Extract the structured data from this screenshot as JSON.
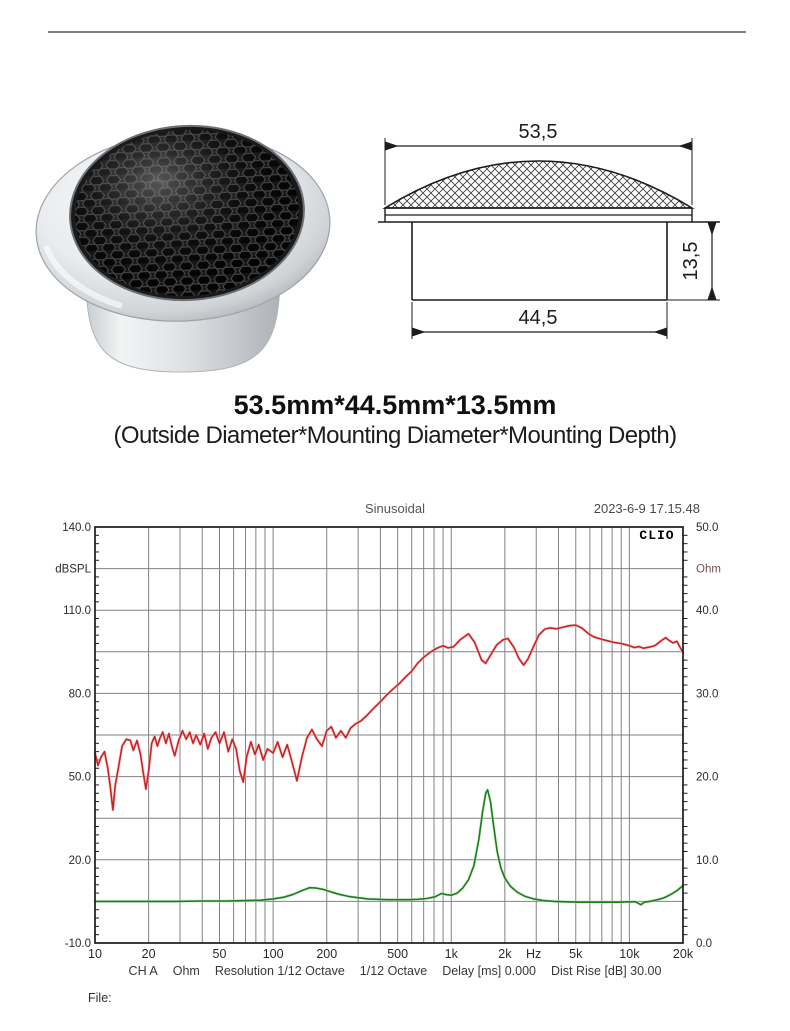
{
  "headline": {
    "size": "53.5mm*44.5mm*13.5mm",
    "note": "(Outside Diameter*Mounting Diameter*Mounting Depth)"
  },
  "dimension_drawing": {
    "outer_diameter": "53,5",
    "mounting_diameter": "44,5",
    "mounting_depth": "13,5"
  },
  "chart_data": {
    "type": "line",
    "title": "Sinusoidal",
    "timestamp": "2023-6-9 17.15.48",
    "brand": "CLIO",
    "file_label": "File:",
    "footer": [
      "CH A",
      "Ohm",
      "Resolution 1/12 Octave",
      "1/12 Octave",
      "Delay [ms] 0.000",
      "Dist Rise [dB] 30.00"
    ],
    "grid": {
      "h_step_db": 15,
      "x_decade_lines": [
        2,
        3,
        4,
        5,
        6,
        7,
        8,
        9,
        10
      ]
    },
    "x_axis": {
      "scale": "log",
      "min_hz": 10,
      "max_hz": 20000,
      "unit": "Hz",
      "ticks": [
        {
          "f": 10,
          "t": "10"
        },
        {
          "f": 20,
          "t": "20"
        },
        {
          "f": 50,
          "t": "50"
        },
        {
          "f": 100,
          "t": "100"
        },
        {
          "f": 200,
          "t": "200"
        },
        {
          "f": 500,
          "t": "500"
        },
        {
          "f": 1000,
          "t": "1k"
        },
        {
          "f": 2000,
          "t": "2k"
        },
        {
          "f": 2900,
          "t": "Hz"
        },
        {
          "f": 5000,
          "t": "5k"
        },
        {
          "f": 10000,
          "t": "10k"
        },
        {
          "f": 20000,
          "t": "20k"
        }
      ]
    },
    "left_axis": {
      "unit": "dBSPL",
      "min": -10,
      "max": 140,
      "labels": [
        {
          "v": 140,
          "t": "140.0"
        },
        {
          "v": 125,
          "t": "dBSPL"
        },
        {
          "v": 110,
          "t": "110.0"
        },
        {
          "v": 80,
          "t": "80.0"
        },
        {
          "v": 50,
          "t": "50.0"
        },
        {
          "v": 20,
          "t": "20.0"
        },
        {
          "v": -10,
          "t": "-10.0"
        }
      ]
    },
    "right_axis": {
      "unit": "Ohm",
      "min": 0,
      "max": 50,
      "labels": [
        {
          "v": 50,
          "t": "50.0"
        },
        {
          "v": 45,
          "t": "Ohm"
        },
        {
          "v": 40,
          "t": "40.0"
        },
        {
          "v": 30,
          "t": "30.0"
        },
        {
          "v": 20,
          "t": "20.0"
        },
        {
          "v": 10,
          "t": "10.0"
        },
        {
          "v": 0,
          "t": "0.0"
        }
      ]
    },
    "series": [
      {
        "name": "SPL",
        "axis": "left",
        "color": "#c82323",
        "halo": "#f2bcbc",
        "points": [
          [
            10,
            58.5
          ],
          [
            10.4,
            54
          ],
          [
            10.8,
            57
          ],
          [
            11.3,
            59
          ],
          [
            11.8,
            53
          ],
          [
            12.2,
            46
          ],
          [
            12.6,
            38
          ],
          [
            13,
            47
          ],
          [
            13.6,
            54
          ],
          [
            14.2,
            61
          ],
          [
            15,
            63.5
          ],
          [
            15.8,
            63
          ],
          [
            16.4,
            59.5
          ],
          [
            17.2,
            63
          ],
          [
            18,
            58
          ],
          [
            18.6,
            52
          ],
          [
            19.3,
            45.5
          ],
          [
            20,
            52
          ],
          [
            20.8,
            62
          ],
          [
            21.6,
            64.5
          ],
          [
            22.4,
            61
          ],
          [
            23.2,
            64
          ],
          [
            24,
            66
          ],
          [
            25,
            62
          ],
          [
            26,
            65.5
          ],
          [
            27,
            61
          ],
          [
            28,
            57.5
          ],
          [
            29.5,
            63
          ],
          [
            31,
            66.5
          ],
          [
            32.5,
            63.5
          ],
          [
            34,
            66
          ],
          [
            35.5,
            62
          ],
          [
            37,
            65
          ],
          [
            39,
            61.5
          ],
          [
            41,
            65.5
          ],
          [
            43,
            60
          ],
          [
            45,
            64
          ],
          [
            47.5,
            66
          ],
          [
            50,
            62
          ],
          [
            53,
            66
          ],
          [
            56,
            59
          ],
          [
            59,
            63.5
          ],
          [
            62,
            60
          ],
          [
            65,
            52
          ],
          [
            68,
            48
          ],
          [
            71,
            57
          ],
          [
            75,
            62.5
          ],
          [
            79,
            58
          ],
          [
            83,
            61.5
          ],
          [
            88,
            56
          ],
          [
            93,
            60
          ],
          [
            100,
            58.5
          ],
          [
            106,
            62.5
          ],
          [
            113,
            57
          ],
          [
            120,
            61.5
          ],
          [
            128,
            55
          ],
          [
            136,
            48.5
          ],
          [
            145,
            57
          ],
          [
            155,
            64
          ],
          [
            165,
            67
          ],
          [
            176,
            63.5
          ],
          [
            188,
            61
          ],
          [
            200,
            66.5
          ],
          [
            212,
            68
          ],
          [
            225,
            64
          ],
          [
            240,
            66.5
          ],
          [
            256,
            64
          ],
          [
            272,
            67.5
          ],
          [
            290,
            69
          ],
          [
            310,
            70
          ],
          [
            335,
            72
          ],
          [
            365,
            74.5
          ],
          [
            400,
            77
          ],
          [
            435,
            79.5
          ],
          [
            470,
            81.5
          ],
          [
            510,
            83.5
          ],
          [
            555,
            86
          ],
          [
            600,
            88
          ],
          [
            650,
            91
          ],
          [
            700,
            93
          ],
          [
            760,
            94.8
          ],
          [
            830,
            96.3
          ],
          [
            900,
            97.2
          ],
          [
            960,
            96.4
          ],
          [
            1030,
            96.8
          ],
          [
            1120,
            99.3
          ],
          [
            1250,
            101.5
          ],
          [
            1350,
            98.5
          ],
          [
            1480,
            92
          ],
          [
            1560,
            90.8
          ],
          [
            1650,
            93.5
          ],
          [
            1800,
            97.5
          ],
          [
            1950,
            99.3
          ],
          [
            2080,
            99.8
          ],
          [
            2250,
            96.5
          ],
          [
            2400,
            92.5
          ],
          [
            2550,
            90.2
          ],
          [
            2700,
            92.5
          ],
          [
            2900,
            97
          ],
          [
            3100,
            101
          ],
          [
            3350,
            103.2
          ],
          [
            3600,
            103.6
          ],
          [
            3900,
            103.3
          ],
          [
            4200,
            103.8
          ],
          [
            4600,
            104.4
          ],
          [
            5000,
            104.6
          ],
          [
            5400,
            103.6
          ],
          [
            5900,
            101.5
          ],
          [
            6300,
            100.4
          ],
          [
            6900,
            99.6
          ],
          [
            7500,
            99
          ],
          [
            8200,
            98.4
          ],
          [
            9000,
            98
          ],
          [
            10000,
            97.2
          ],
          [
            10700,
            96.5
          ],
          [
            11300,
            96.9
          ],
          [
            12000,
            96.3
          ],
          [
            13000,
            96.7
          ],
          [
            14000,
            97.3
          ],
          [
            15000,
            98.9
          ],
          [
            16000,
            100.1
          ],
          [
            16800,
            99
          ],
          [
            17600,
            98.2
          ],
          [
            18500,
            98.8
          ],
          [
            19300,
            96.5
          ],
          [
            20000,
            94.8
          ]
        ]
      },
      {
        "name": "Impedance",
        "axis": "right",
        "color": "#1d7d1d",
        "halo": "#bfe6bf",
        "points": [
          [
            10,
            5.0
          ],
          [
            14,
            5.0
          ],
          [
            20,
            5.0
          ],
          [
            28,
            5.0
          ],
          [
            40,
            5.05
          ],
          [
            55,
            5.05
          ],
          [
            70,
            5.1
          ],
          [
            85,
            5.15
          ],
          [
            100,
            5.3
          ],
          [
            115,
            5.5
          ],
          [
            130,
            5.85
          ],
          [
            145,
            6.3
          ],
          [
            160,
            6.65
          ],
          [
            175,
            6.6
          ],
          [
            190,
            6.45
          ],
          [
            210,
            6.15
          ],
          [
            235,
            5.85
          ],
          [
            265,
            5.6
          ],
          [
            300,
            5.45
          ],
          [
            340,
            5.3
          ],
          [
            385,
            5.25
          ],
          [
            440,
            5.2
          ],
          [
            500,
            5.2
          ],
          [
            570,
            5.2
          ],
          [
            650,
            5.25
          ],
          [
            730,
            5.35
          ],
          [
            810,
            5.55
          ],
          [
            880,
            5.95
          ],
          [
            940,
            5.8
          ],
          [
            1000,
            5.75
          ],
          [
            1080,
            6.0
          ],
          [
            1160,
            6.6
          ],
          [
            1250,
            7.6
          ],
          [
            1340,
            9.3
          ],
          [
            1430,
            12.5
          ],
          [
            1500,
            15.8
          ],
          [
            1560,
            18.0
          ],
          [
            1600,
            18.4
          ],
          [
            1660,
            17.0
          ],
          [
            1730,
            14.0
          ],
          [
            1810,
            11.0
          ],
          [
            1900,
            9.0
          ],
          [
            2000,
            7.8
          ],
          [
            2150,
            6.8
          ],
          [
            2350,
            6.1
          ],
          [
            2600,
            5.6
          ],
          [
            2900,
            5.3
          ],
          [
            3300,
            5.1
          ],
          [
            3800,
            5.0
          ],
          [
            4400,
            4.95
          ],
          [
            5200,
            4.9
          ],
          [
            6200,
            4.9
          ],
          [
            7400,
            4.9
          ],
          [
            8600,
            4.9
          ],
          [
            9800,
            4.95
          ],
          [
            10800,
            4.95
          ],
          [
            11600,
            4.6
          ],
          [
            12100,
            4.9
          ],
          [
            13000,
            5.0
          ],
          [
            14000,
            5.15
          ],
          [
            15500,
            5.4
          ],
          [
            17000,
            5.8
          ],
          [
            18500,
            6.3
          ],
          [
            20000,
            6.9
          ]
        ]
      }
    ]
  }
}
